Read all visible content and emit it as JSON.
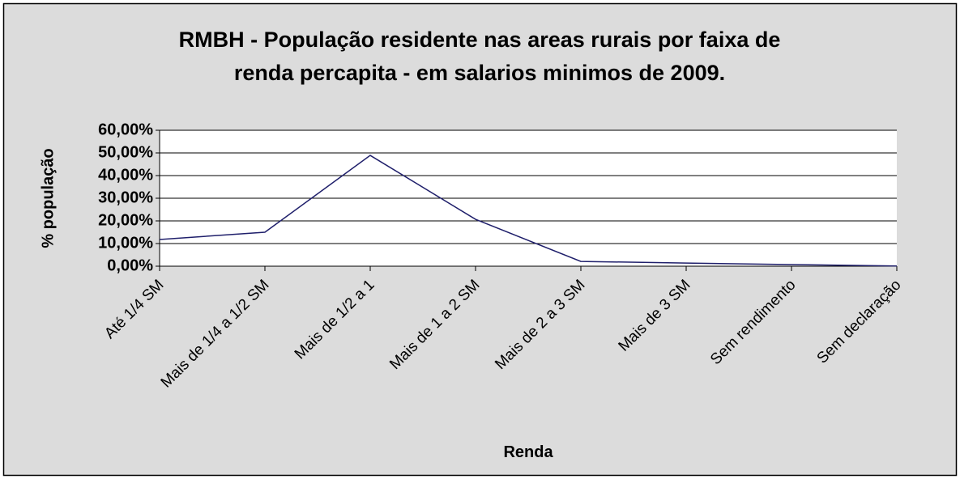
{
  "chart_data": {
    "type": "line",
    "title": [
      "RMBH - População residente nas areas rurais por faixa de",
      "renda percapita - em salarios minimos de 2009."
    ],
    "x_label": "Renda",
    "y_label": "% população",
    "categories": [
      "Até 1/4 SM",
      "Mais de 1/4 a 1/2 SM",
      "Mais de 1/2 a 1",
      "Mais de 1 a 2 SM",
      "Mais de 2 a 3 SM",
      "Mais de 3 SM",
      "Sem rendimento",
      "Sem declaração"
    ],
    "values": [
      11.8,
      15,
      48.9,
      20.7,
      2.1,
      1.4,
      0.7,
      0.1
    ],
    "color": "#1f1f6b",
    "ylim": [
      0,
      60
    ],
    "yticks": [
      {
        "value": 0,
        "label": "0,00%"
      },
      {
        "value": 10,
        "label": "10,00%"
      },
      {
        "value": 20,
        "label": "20,00%"
      },
      {
        "value": 30,
        "label": "30,00%"
      },
      {
        "value": 40,
        "label": "40,00%"
      },
      {
        "value": 50,
        "label": "50,00%"
      },
      {
        "value": 60,
        "label": "60,00%"
      }
    ],
    "grid": true
  }
}
